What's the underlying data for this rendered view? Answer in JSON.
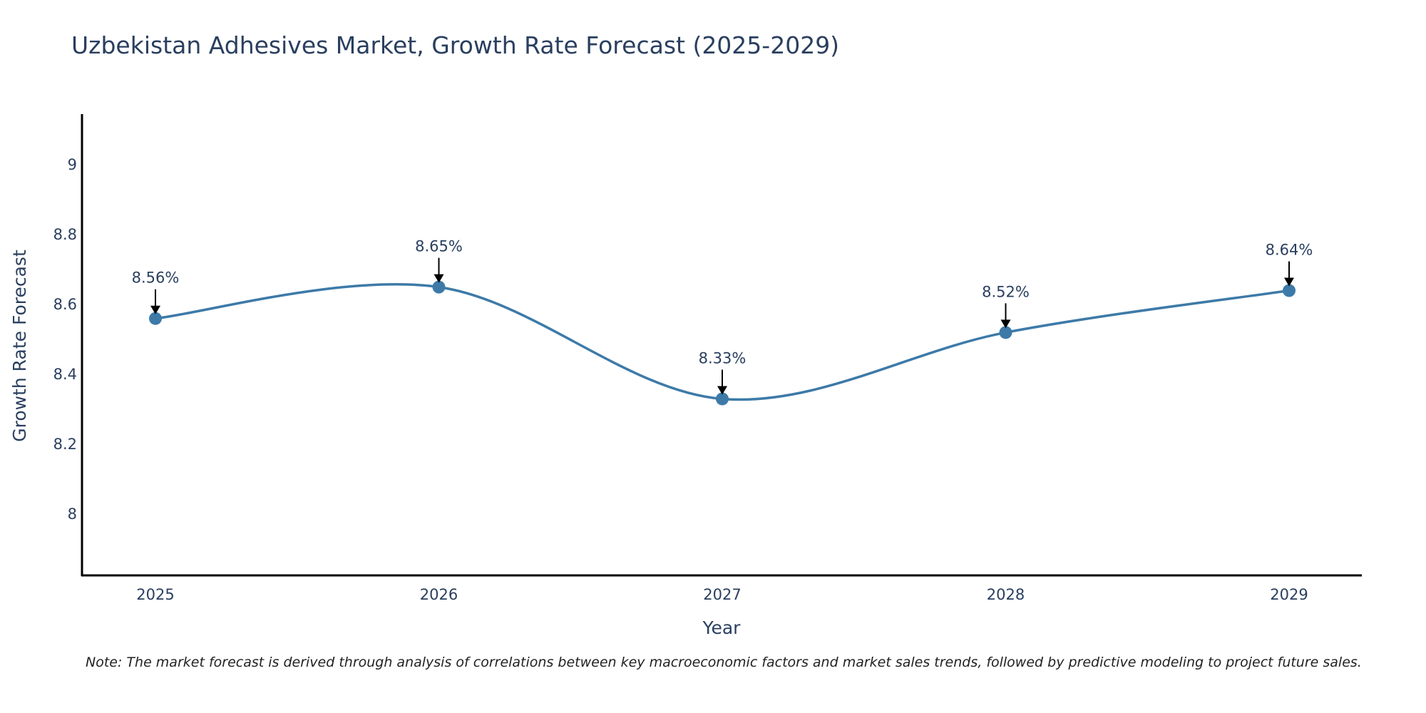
{
  "chart_data": {
    "type": "line",
    "title": "Uzbekistan Adhesives Market, Growth Rate Forecast (2025-2029)",
    "xlabel": "Year",
    "ylabel": "Growth Rate Forecast",
    "categories": [
      "2025",
      "2026",
      "2027",
      "2028",
      "2029"
    ],
    "series": [
      {
        "name": "Growth Rate Forecast",
        "values": [
          8.56,
          8.65,
          8.33,
          8.52,
          8.64
        ],
        "data_labels": [
          "8.56%",
          "8.65%",
          "8.33%",
          "8.52%",
          "8.64%"
        ]
      }
    ],
    "yticks": [
      8,
      8.2,
      8.4,
      8.6,
      8.8,
      9
    ],
    "ytick_labels": [
      "8",
      "8.2",
      "8.4",
      "8.6",
      "8.8",
      "9"
    ],
    "ylim": [
      7.825,
      9.145
    ],
    "grid": false,
    "line_shape": "spline",
    "colors": {
      "line": "#3d7aa8",
      "marker": "#3d7aa8",
      "arrow": "#000000",
      "axis": "#000000",
      "text": "#2a3f5f"
    },
    "note": "Note: The market forecast is derived through analysis of correlations between key macroeconomic factors and market sales trends, followed by predictive modeling to project future sales."
  }
}
